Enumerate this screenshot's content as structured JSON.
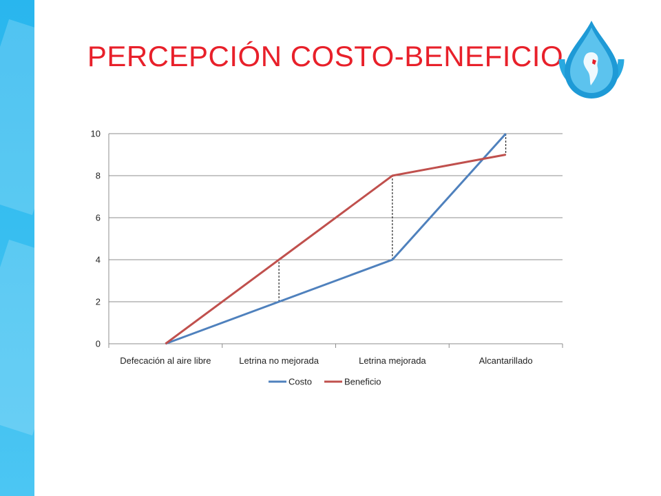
{
  "slide": {
    "title": "PERCEPCIÓN COSTO-BENEFICIO",
    "accent_color": "#e8202a",
    "sidebar_color": "#29b6ee",
    "logo_icon": "water-drop-latin-america-logo"
  },
  "chart_data": {
    "type": "line",
    "categories": [
      "Defecación al aire libre",
      "Letrina no mejorada",
      "Letrina mejorada",
      "Alcantarillado"
    ],
    "series": [
      {
        "name": "Costo",
        "values": [
          0,
          2,
          4,
          10
        ],
        "color": "#4f81bd"
      },
      {
        "name": "Beneficio",
        "values": [
          0,
          4,
          8,
          9
        ],
        "color": "#c0504d"
      }
    ],
    "ylim": [
      0,
      10
    ],
    "yticks": [
      0,
      2,
      4,
      6,
      8,
      10
    ],
    "grid": true,
    "legend": "bottom",
    "annotations": "dashed vertical lines between Costo and Beneficio at Letrina no mejorada, Letrina mejorada and Alcantarillado"
  }
}
